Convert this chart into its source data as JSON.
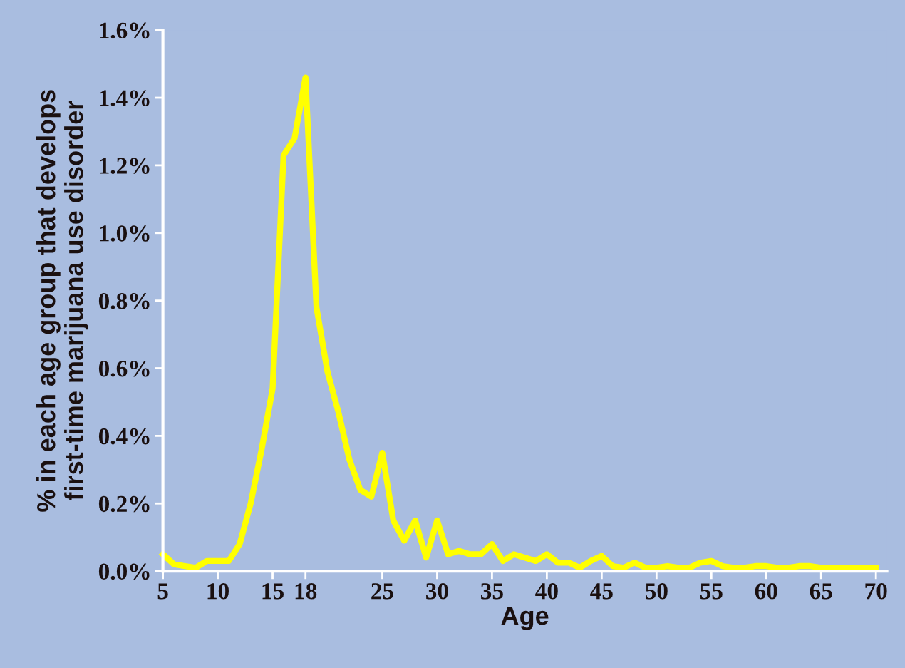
{
  "chart_data": {
    "type": "line",
    "xlabel": "Age",
    "ylabel": "% in each age group that develops\nfirst-time marijuana use disorder",
    "x": [
      5,
      6,
      7,
      8,
      9,
      10,
      11,
      12,
      13,
      14,
      15,
      16,
      17,
      18,
      19,
      20,
      21,
      22,
      23,
      24,
      25,
      26,
      27,
      28,
      29,
      30,
      31,
      32,
      33,
      34,
      35,
      36,
      37,
      38,
      39,
      40,
      41,
      42,
      43,
      44,
      45,
      46,
      47,
      48,
      49,
      50,
      51,
      52,
      53,
      54,
      55,
      56,
      57,
      58,
      59,
      60,
      61,
      62,
      63,
      64,
      65,
      66,
      67,
      68,
      69,
      70
    ],
    "series": [
      {
        "color": "#ffff00",
        "values": [
          0.05,
          0.02,
          0.015,
          0.01,
          0.03,
          0.03,
          0.03,
          0.08,
          0.2,
          0.36,
          0.54,
          1.23,
          1.28,
          1.46,
          0.78,
          0.59,
          0.47,
          0.33,
          0.24,
          0.22,
          0.35,
          0.15,
          0.09,
          0.15,
          0.04,
          0.15,
          0.05,
          0.06,
          0.05,
          0.05,
          0.08,
          0.03,
          0.05,
          0.04,
          0.03,
          0.05,
          0.025,
          0.025,
          0.01,
          0.03,
          0.045,
          0.015,
          0.01,
          0.025,
          0.01,
          0.01,
          0.015,
          0.01,
          0.01,
          0.025,
          0.03,
          0.015,
          0.01,
          0.01,
          0.015,
          0.015,
          0.01,
          0.01,
          0.015,
          0.015,
          0.01,
          0.01,
          0.01,
          0.01,
          0.01,
          0.01
        ]
      }
    ],
    "xlim": [
      5,
      71
    ],
    "xticks": [
      5,
      10,
      15,
      18,
      25,
      30,
      35,
      40,
      45,
      50,
      55,
      60,
      65,
      70
    ],
    "ylim": [
      0,
      1.6
    ],
    "yticks": [
      {
        "value": 0,
        "label": "0.0%"
      },
      {
        "value": 0.2,
        "label": "0.2%"
      },
      {
        "value": 0.4,
        "label": "0.4%"
      },
      {
        "value": 0.6,
        "label": "0.6%"
      },
      {
        "value": 0.8,
        "label": "0.8%"
      },
      {
        "value": 1.0,
        "label": "1.0%"
      },
      {
        "value": 1.2,
        "label": "1.2%"
      },
      {
        "value": 1.4,
        "label": "1.4%"
      },
      {
        "value": 1.6,
        "label": "1.6%"
      }
    ],
    "grid": false,
    "marker": "none",
    "line_style": "solid",
    "legend": false
  }
}
